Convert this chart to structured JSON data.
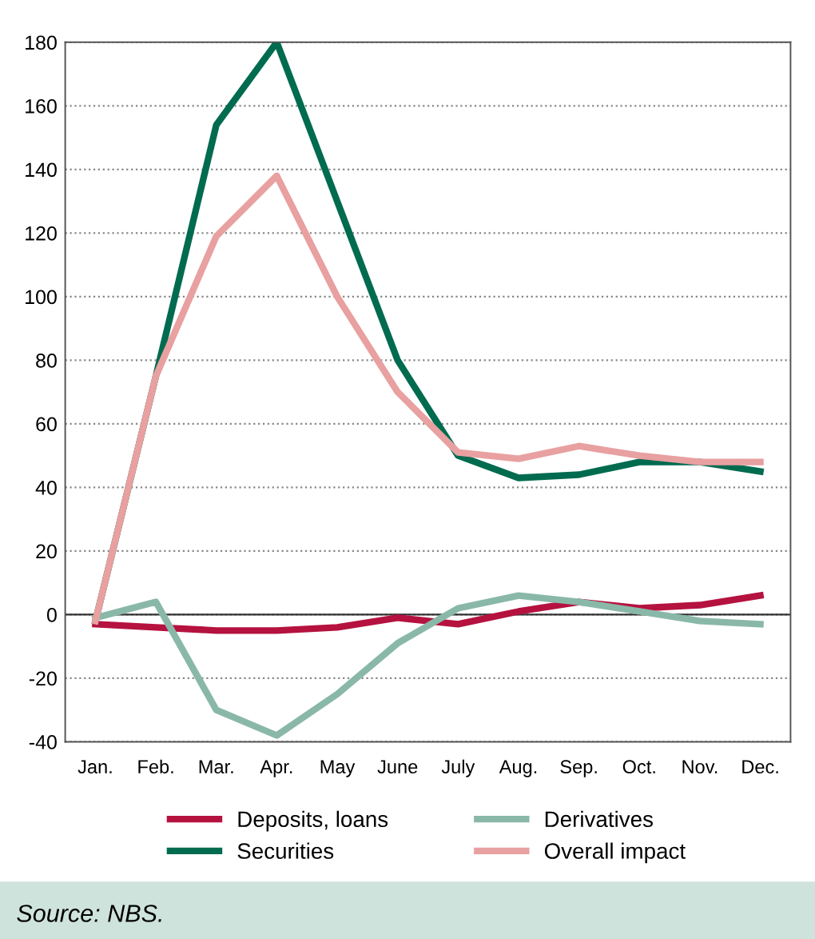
{
  "chart_data": {
    "type": "line",
    "categories": [
      "Jan.",
      "Feb.",
      "Mar.",
      "Apr.",
      "May",
      "June",
      "July",
      "Aug.",
      "Sep.",
      "Oct.",
      "Nov.",
      "Dec."
    ],
    "series": [
      {
        "name": "Deposits, loans",
        "color": "#b5123f",
        "values": [
          -3,
          -4,
          -5,
          -5,
          -4,
          -1,
          -3,
          1,
          4,
          2,
          3,
          6
        ]
      },
      {
        "name": "Securities",
        "color": "#006b4f",
        "values": [
          -2,
          75,
          154,
          180,
          130,
          80,
          50,
          43,
          44,
          48,
          48,
          45
        ]
      },
      {
        "name": "Derivatives",
        "color": "#8ab8a8",
        "values": [
          -1,
          4,
          -30,
          -38,
          -25,
          -9,
          2,
          6,
          4,
          1,
          -2,
          -3
        ]
      },
      {
        "name": "Overall impact",
        "color": "#e8a0a0",
        "values": [
          -2,
          75,
          119,
          138,
          100,
          70,
          51,
          49,
          53,
          50,
          48,
          48
        ]
      }
    ],
    "ylim": [
      -40,
      180
    ],
    "yticks": [
      -40,
      -20,
      0,
      20,
      40,
      60,
      80,
      100,
      120,
      140,
      160,
      180
    ],
    "grid": "y",
    "legend": "bottom",
    "marker": "none",
    "line_style": "solid",
    "annotations": [
      "Source: NBS."
    ]
  }
}
